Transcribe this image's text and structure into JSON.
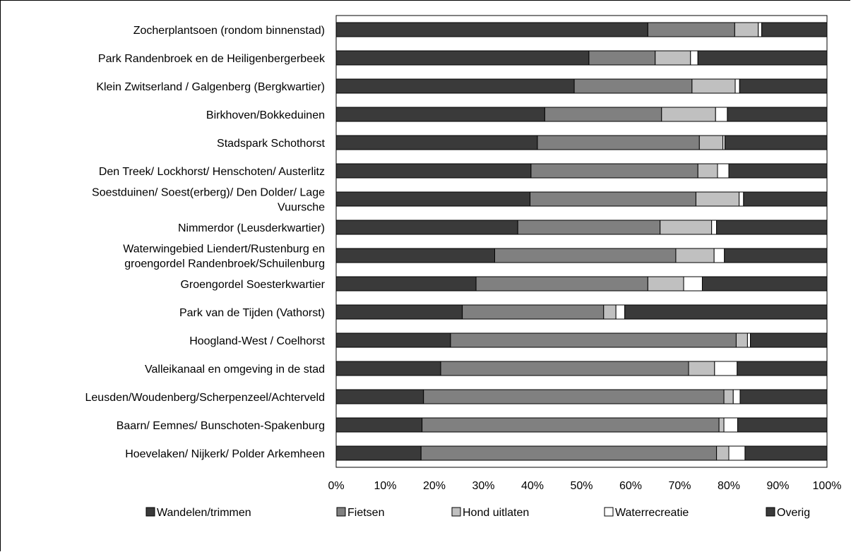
{
  "chart_data": {
    "type": "bar",
    "orientation": "horizontal",
    "stacked": "percent",
    "title": "",
    "xlabel": "",
    "ylabel": "",
    "xlim": [
      0,
      100
    ],
    "tick_labels": [
      "0%",
      "10%",
      "20%",
      "30%",
      "40%",
      "50%",
      "60%",
      "70%",
      "80%",
      "90%",
      "100%"
    ],
    "grid": true,
    "legend_position": "bottom",
    "categories": [
      [
        "Zocherplantsoen (rondom binnenstad)"
      ],
      [
        "Park Randenbroek en de Heiligenbergerbeek"
      ],
      [
        "Klein Zwitserland / Galgenberg (Bergkwartier)"
      ],
      [
        "Birkhoven/Bokkeduinen"
      ],
      [
        "Stadspark Schothorst"
      ],
      [
        "Den Treek/ Lockhorst/ Henschoten/ Austerlitz"
      ],
      [
        "Soestduinen/ Soest(erberg)/ Den Dolder/ Lage",
        "Vuursche"
      ],
      [
        "Nimmerdor (Leusderkwartier)"
      ],
      [
        "Waterwingebied Liendert/Rustenburg en",
        "groengordel Randenbroek/Schuilenburg"
      ],
      [
        "Groengordel Soesterkwartier"
      ],
      [
        "Park van de Tijden (Vathorst)"
      ],
      [
        "Hoogland-West / Coelhorst"
      ],
      [
        "Valleikanaal en omgeving in de stad"
      ],
      [
        "Leusden/Woudenberg/Scherpenzeel/Achterveld"
      ],
      [
        "Baarn/ Eemnes/ Bunschoten-Spakenburg"
      ],
      [
        "Hoevelaken/ Nijkerk/ Polder Arkemheen"
      ]
    ],
    "series": [
      {
        "name": "Wandelen/trimmen",
        "color": "#3a3a3a",
        "values": [
          63.5,
          51.5,
          48.5,
          42.5,
          41.0,
          39.7,
          39.5,
          37.0,
          32.3,
          28.5,
          25.7,
          23.3,
          21.3,
          17.8,
          17.5,
          17.3
        ]
      },
      {
        "name": "Fietsen",
        "color": "#808080",
        "values": [
          17.7,
          13.5,
          24.0,
          23.8,
          33.0,
          34.0,
          33.8,
          29.0,
          36.9,
          35.0,
          28.8,
          58.2,
          50.5,
          61.2,
          60.5,
          60.2
        ]
      },
      {
        "name": "Hond uitlaten",
        "color": "#c0c0c0",
        "values": [
          4.8,
          7.2,
          8.8,
          11.0,
          4.8,
          4.0,
          8.8,
          10.5,
          7.8,
          7.3,
          2.5,
          2.3,
          5.3,
          1.9,
          1.0,
          2.5
        ]
      },
      {
        "name": "Waterrecreatie",
        "color": "#ffffff",
        "values": [
          0.7,
          1.5,
          0.9,
          2.4,
          0.4,
          2.3,
          0.9,
          1.0,
          2.1,
          3.8,
          1.8,
          0.6,
          4.6,
          1.4,
          2.8,
          3.3
        ]
      },
      {
        "name": "Overig",
        "color": "#3a3a3a",
        "values": [
          13.3,
          26.3,
          17.8,
          20.3,
          20.8,
          20.0,
          17.0,
          22.5,
          20.9,
          25.4,
          41.2,
          15.6,
          18.3,
          17.7,
          18.2,
          16.7
        ]
      }
    ]
  }
}
